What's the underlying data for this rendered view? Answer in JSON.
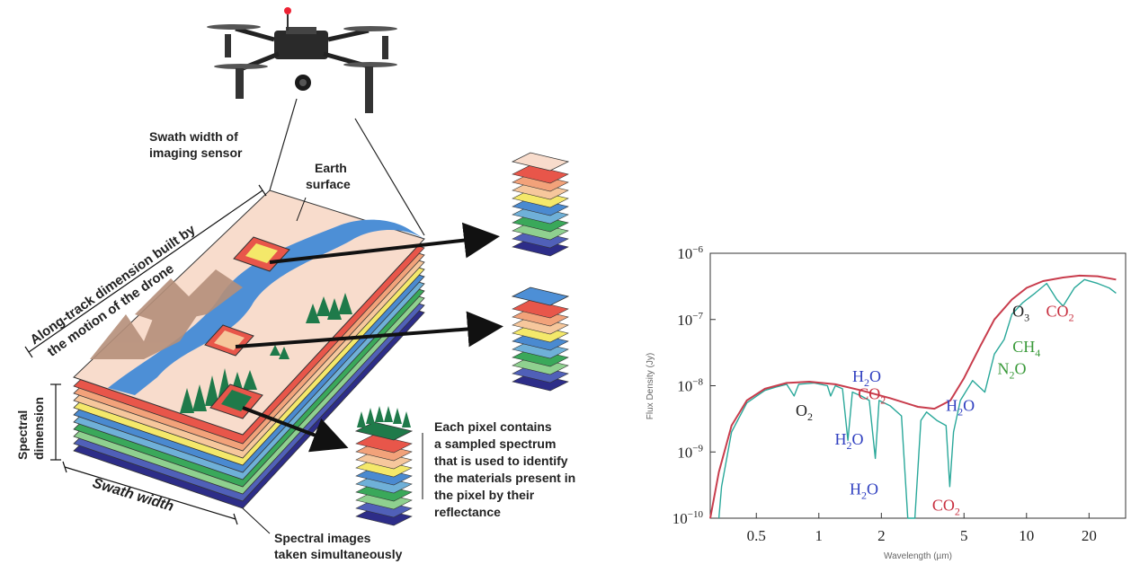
{
  "diagram": {
    "swath_width_sensor": [
      "Swath width of",
      "imaging sensor"
    ],
    "earth_surface": [
      "Earth",
      "surface"
    ],
    "along_track": [
      "Along-track dimension built by",
      "the motion of the drone"
    ],
    "spectral_dimension": [
      "Spectral",
      "dimension"
    ],
    "swath_width": "Swath width",
    "pixel_description": [
      "Each pixel contains",
      "a sampled spectrum",
      "that is used to identify",
      "the materials present in",
      "the pixel by their",
      "reflectance"
    ],
    "spectral_images": [
      "Spectral  images",
      "taken simultaneously"
    ]
  },
  "colors": {
    "surface": "#f8dccc",
    "river": "#4d8fd6",
    "layer_stack": [
      "#e8564a",
      "#f2a27a",
      "#f6c79c",
      "#f4e86a",
      "#4a8ad0",
      "#6fb0d8",
      "#3aa85a",
      "#8fd08f",
      "#5060b8",
      "#2d2d88"
    ],
    "spectrum_fit": "#c83c4c",
    "spectrum_data": "#2aa89a",
    "label_blue": "#3040c0",
    "label_red": "#c83040",
    "label_black": "#222222",
    "label_green": "#3a9a3a"
  },
  "icons": [
    "drone-icon",
    "tree-icon",
    "mountain-icon",
    "arrow-icon"
  ],
  "chart_data": {
    "type": "line",
    "title": "",
    "xlabel": "Wavelength (µm)",
    "ylabel": "Flux Density (Jy)",
    "x_scale": "log",
    "y_scale": "log",
    "xlim": [
      0.3,
      30
    ],
    "ylim": [
      1e-10,
      1e-06
    ],
    "x_ticks": [
      {
        "value": 0.5,
        "label": "0.5"
      },
      {
        "value": 1,
        "label": "1"
      },
      {
        "value": 2,
        "label": "2"
      },
      {
        "value": 5,
        "label": "5"
      },
      {
        "value": 10,
        "label": "10"
      },
      {
        "value": 20,
        "label": "20"
      }
    ],
    "y_ticks": [
      {
        "value": 1e-10,
        "base": "10",
        "exp": "−10"
      },
      {
        "value": 1e-09,
        "base": "10",
        "exp": "−9"
      },
      {
        "value": 1e-08,
        "base": "10",
        "exp": "−8"
      },
      {
        "value": 1e-07,
        "base": "10",
        "exp": "−7"
      },
      {
        "value": 1e-06,
        "base": "10",
        "exp": "−6"
      }
    ],
    "series": [
      {
        "color": "#c83c4c",
        "points": [
          [
            0.3,
            1e-10
          ],
          [
            0.33,
            5e-10
          ],
          [
            0.38,
            2.5e-09
          ],
          [
            0.45,
            6e-09
          ],
          [
            0.55,
            9e-09
          ],
          [
            0.7,
            1.1e-08
          ],
          [
            0.9,
            1.15e-08
          ],
          [
            1.2,
            1.05e-08
          ],
          [
            1.6,
            8.5e-09
          ],
          [
            2.2,
            6.5e-09
          ],
          [
            3,
            4.8e-09
          ],
          [
            3.6,
            4.5e-09
          ],
          [
            4.3,
            6e-09
          ],
          [
            5,
            1.3e-08
          ],
          [
            6,
            4e-08
          ],
          [
            7,
            1e-07
          ],
          [
            8.5,
            2e-07
          ],
          [
            10,
            3e-07
          ],
          [
            12,
            3.8e-07
          ],
          [
            15,
            4.3e-07
          ],
          [
            18,
            4.6e-07
          ],
          [
            22,
            4.5e-07
          ],
          [
            27,
            4e-07
          ]
        ]
      },
      {
        "color": "#2aa89a",
        "points": [
          [
            0.33,
            1e-10
          ],
          [
            0.34,
            3e-10
          ],
          [
            0.38,
            2e-09
          ],
          [
            0.45,
            5.5e-09
          ],
          [
            0.55,
            8.5e-09
          ],
          [
            0.62,
            9.5e-09
          ],
          [
            0.7,
            1.05e-08
          ],
          [
            0.76,
            7e-09
          ],
          [
            0.8,
            1.05e-08
          ],
          [
            0.95,
            1.1e-08
          ],
          [
            1.1,
            1e-08
          ],
          [
            1.14,
            7e-09
          ],
          [
            1.2,
            1e-08
          ],
          [
            1.3,
            9e-09
          ],
          [
            1.38,
            1.5e-09
          ],
          [
            1.45,
            8e-09
          ],
          [
            1.6,
            7e-09
          ],
          [
            1.75,
            6e-09
          ],
          [
            1.87,
            8e-10
          ],
          [
            1.95,
            6e-09
          ],
          [
            2.2,
            5e-09
          ],
          [
            2.5,
            3.5e-09
          ],
          [
            2.68,
            1e-10
          ],
          [
            2.9,
            1e-10
          ],
          [
            3.1,
            3e-09
          ],
          [
            3.3,
            4e-09
          ],
          [
            3.7,
            3e-09
          ],
          [
            4.1,
            2.5e-09
          ],
          [
            4.27,
            3e-10
          ],
          [
            4.45,
            2e-09
          ],
          [
            4.8,
            6e-09
          ],
          [
            5.5,
            1.2e-08
          ],
          [
            6.3,
            8e-09
          ],
          [
            7,
            3e-08
          ],
          [
            7.8,
            5e-08
          ],
          [
            8.5,
            1.2e-07
          ],
          [
            9.6,
            1.8e-07
          ],
          [
            11,
            2.5e-07
          ],
          [
            12.5,
            3.5e-07
          ],
          [
            14,
            2e-07
          ],
          [
            15,
            1.6e-07
          ],
          [
            17,
            3e-07
          ],
          [
            19,
            4e-07
          ],
          [
            22,
            3.5e-07
          ],
          [
            25,
            3e-07
          ],
          [
            27,
            2.5e-07
          ]
        ]
      }
    ],
    "annotations": [
      {
        "base": "O",
        "sub": "2",
        "x": 0.85,
        "y": 3.5e-09,
        "color": "#222222"
      },
      {
        "base": "H",
        "sub": "2",
        "tail": "O",
        "x": 1.7,
        "y": 1.15e-08,
        "color": "#3040c0"
      },
      {
        "base": "CO",
        "sub": "2",
        "x": 1.8,
        "y": 6.3e-09,
        "color": "#c83040"
      },
      {
        "base": "H",
        "sub": "2",
        "tail": "O",
        "x": 4.8,
        "y": 4.2e-09,
        "color": "#3040c0"
      },
      {
        "base": "H",
        "sub": "2",
        "tail": "O",
        "x": 1.4,
        "y": 1.3e-09,
        "color": "#3040c0"
      },
      {
        "base": "H",
        "sub": "2",
        "tail": "O",
        "x": 1.65,
        "y": 2.3e-10,
        "color": "#3040c0"
      },
      {
        "base": "CO",
        "sub": "2",
        "x": 4.1,
        "y": 1.3e-10,
        "color": "#c83040"
      },
      {
        "base": "O",
        "sub": "3",
        "x": 9.4,
        "y": 1.1e-07,
        "color": "#222222"
      },
      {
        "base": "CO",
        "sub": "2",
        "x": 14.5,
        "y": 1.1e-07,
        "color": "#c83040"
      },
      {
        "base": "CH",
        "sub": "4",
        "x": 10,
        "y": 3.2e-08,
        "color": "#3a9a3a"
      },
      {
        "base": "N",
        "sub": "2",
        "tail": "O",
        "x": 8.5,
        "y": 1.5e-08,
        "color": "#3a9a3a"
      }
    ]
  }
}
